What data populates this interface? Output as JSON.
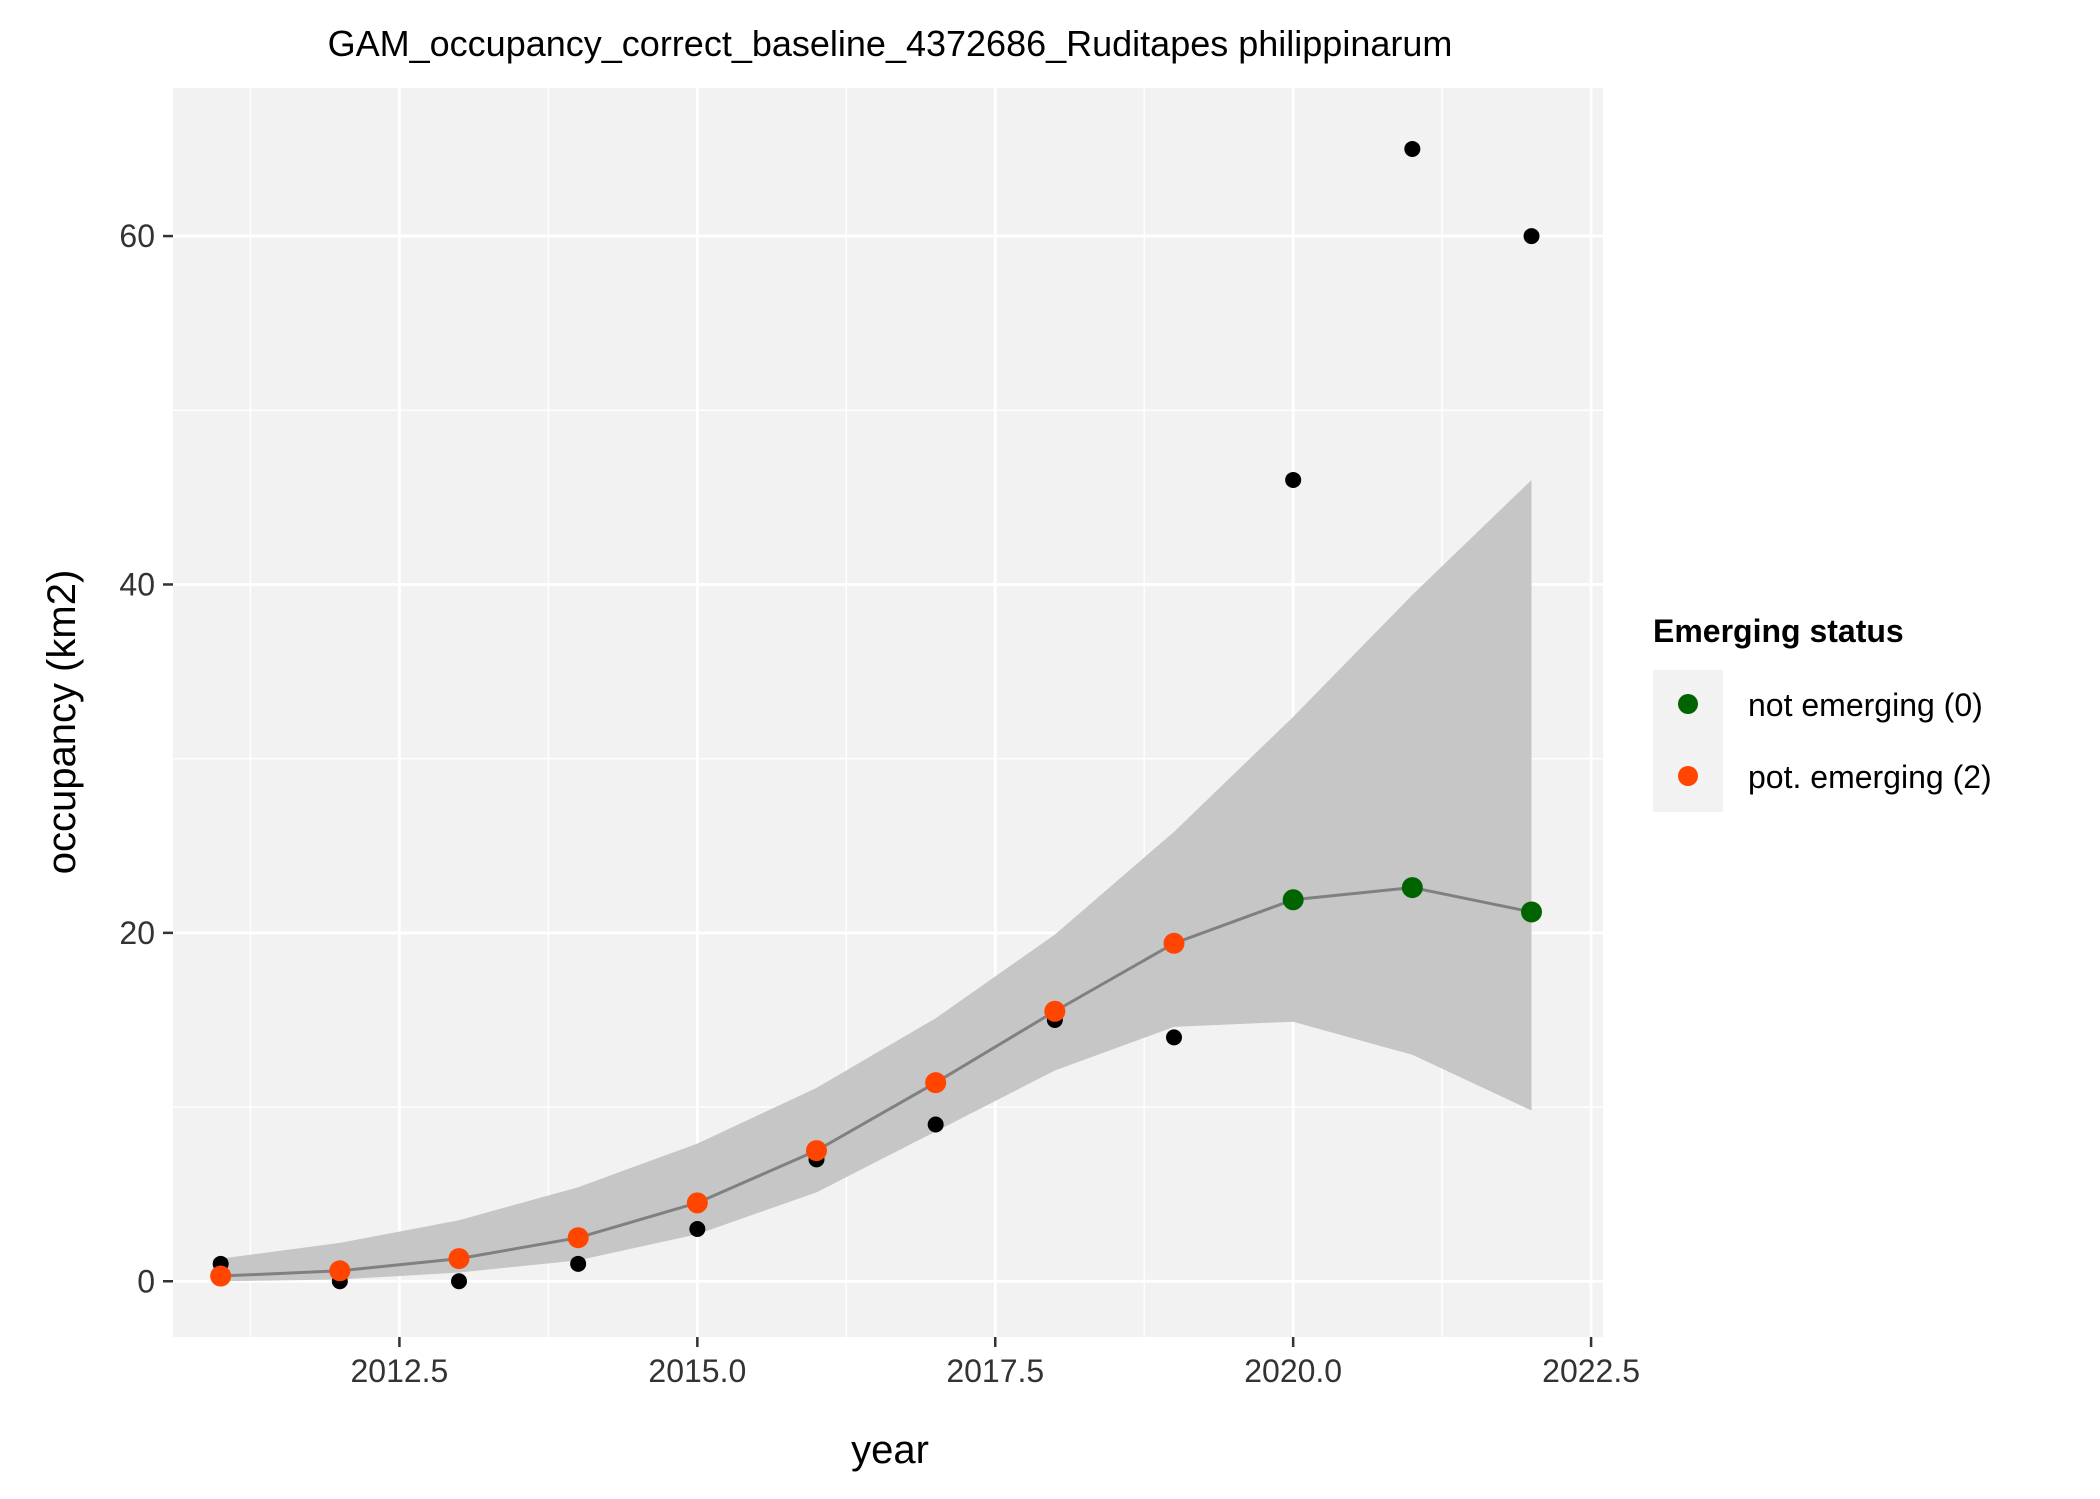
{
  "chart_data": {
    "type": "scatter",
    "title": "GAM_occupancy_correct_baseline_4372686_Ruditapes philippinarum",
    "xlabel": "year",
    "ylabel": "occupancy (km2)",
    "xlim": [
      2010.6,
      2022.6
    ],
    "ylim": [
      -3.2,
      68.5
    ],
    "x_ticks": [
      2012.5,
      2015.0,
      2017.5,
      2020.0,
      2022.5
    ],
    "x_tick_labels": [
      "2012.5",
      "2015.0",
      "2017.5",
      "2020.0",
      "2022.5"
    ],
    "y_ticks": [
      0,
      20,
      40,
      60
    ],
    "y_tick_labels": [
      "0",
      "20",
      "40",
      "60"
    ],
    "grid": true,
    "legend_position": "right",
    "legend_title": "Emerging status",
    "colors": {
      "panel": "#f2f2f2",
      "grid": "#ffffff",
      "ribbon": "#c6c6c6",
      "fit_line": "#808080",
      "observed": "#000000",
      "not_emerging": "#006400",
      "pot_emerging": "#ff4500"
    },
    "observed": {
      "x": [
        2011,
        2012,
        2013,
        2014,
        2015,
        2016,
        2017,
        2018,
        2019,
        2020,
        2021,
        2022
      ],
      "y": [
        1,
        0,
        0,
        1,
        3,
        7,
        9,
        15,
        14,
        46,
        65,
        60
      ]
    },
    "fitted": {
      "x": [
        2011,
        2012,
        2013,
        2014,
        2015,
        2016,
        2017,
        2018,
        2019,
        2020,
        2021,
        2022
      ],
      "y": [
        0.3,
        0.6,
        1.3,
        2.5,
        4.5,
        7.5,
        11.4,
        15.5,
        19.4,
        21.9,
        22.6,
        21.2
      ],
      "lower": [
        0.0,
        0.1,
        0.5,
        1.2,
        2.7,
        5.1,
        8.6,
        12.1,
        14.6,
        14.9,
        13.0,
        9.8
      ],
      "upper": [
        1.3,
        2.2,
        3.5,
        5.4,
        7.9,
        11.1,
        15.1,
        19.9,
        25.8,
        32.4,
        39.4,
        46.0
      ],
      "status": [
        2,
        2,
        2,
        2,
        2,
        2,
        2,
        2,
        2,
        0,
        0,
        0
      ]
    },
    "legend": [
      {
        "label": "not emerging (0)",
        "status": 0,
        "color": "#006400"
      },
      {
        "label": "pot. emerging (2)",
        "status": 2,
        "color": "#ff4500"
      }
    ]
  }
}
